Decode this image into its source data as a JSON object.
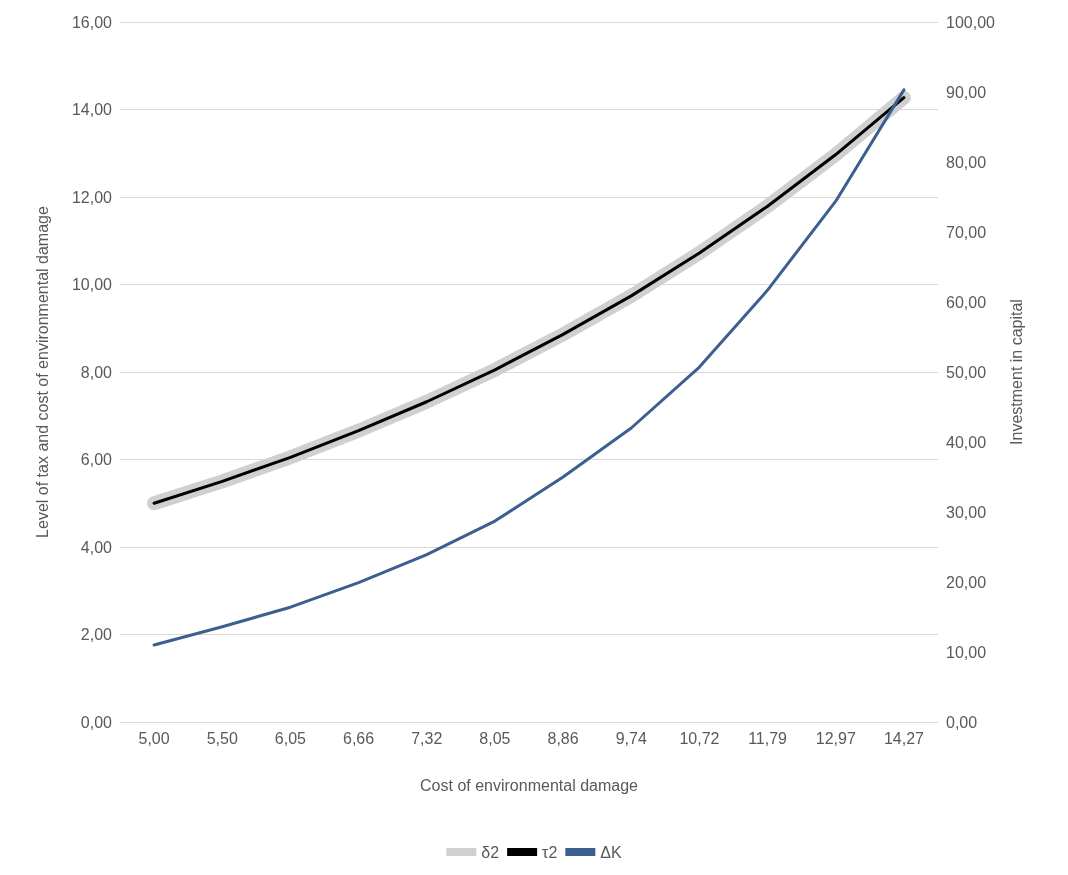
{
  "chart_data": {
    "type": "line",
    "xlabel": "Cost of environmental damage",
    "ylabel": "Level of tax and cost of environmental damage",
    "y2label": "Investment in capital",
    "categories": [
      "5,00",
      "5,50",
      "6,05",
      "6,66",
      "7,32",
      "8,05",
      "8,86",
      "9,74",
      "10,72",
      "11,79",
      "12,97",
      "14,27"
    ],
    "series": [
      {
        "name": "δ2",
        "color": "#d0d0d0",
        "values": [
          5.0,
          5.5,
          6.05,
          6.66,
          7.32,
          8.05,
          8.86,
          9.74,
          10.72,
          11.79,
          12.97,
          14.27
        ]
      },
      {
        "name": "τ2",
        "color": "#000000",
        "values": [
          5.0,
          5.5,
          6.05,
          6.66,
          7.32,
          8.05,
          8.86,
          9.74,
          10.72,
          11.79,
          12.97,
          14.27
        ]
      },
      {
        "name": "ΔK",
        "color": "#3b5f8f",
        "axis": "y2",
        "values": [
          11.0,
          13.6,
          16.4,
          19.9,
          23.9,
          28.7,
          35.0,
          42.0,
          50.7,
          61.7,
          74.4,
          90.3
        ]
      }
    ],
    "ylim": [
      0,
      16
    ],
    "yticks": [
      {
        "value": 0,
        "label": "0,00"
      },
      {
        "value": 2,
        "label": "2,00"
      },
      {
        "value": 4,
        "label": "4,00"
      },
      {
        "value": 6,
        "label": "6,00"
      },
      {
        "value": 8,
        "label": "8,00"
      },
      {
        "value": 10,
        "label": "10,00"
      },
      {
        "value": 12,
        "label": "12,00"
      },
      {
        "value": 14,
        "label": "14,00"
      },
      {
        "value": 16,
        "label": "16,00"
      }
    ],
    "y2lim": [
      0,
      100
    ],
    "y2ticks": [
      {
        "value": 0,
        "label": "0,00"
      },
      {
        "value": 10,
        "label": "10,00"
      },
      {
        "value": 20,
        "label": "20,00"
      },
      {
        "value": 30,
        "label": "30,00"
      },
      {
        "value": 40,
        "label": "40,00"
      },
      {
        "value": 50,
        "label": "50,00"
      },
      {
        "value": 60,
        "label": "60,00"
      },
      {
        "value": 70,
        "label": "70,00"
      },
      {
        "value": 80,
        "label": "80,00"
      },
      {
        "value": 90,
        "label": "90,00"
      },
      {
        "value": 100,
        "label": "100,00"
      }
    ],
    "grid": "y",
    "legend": "bottom",
    "marker": "none",
    "line_style": "solid"
  }
}
